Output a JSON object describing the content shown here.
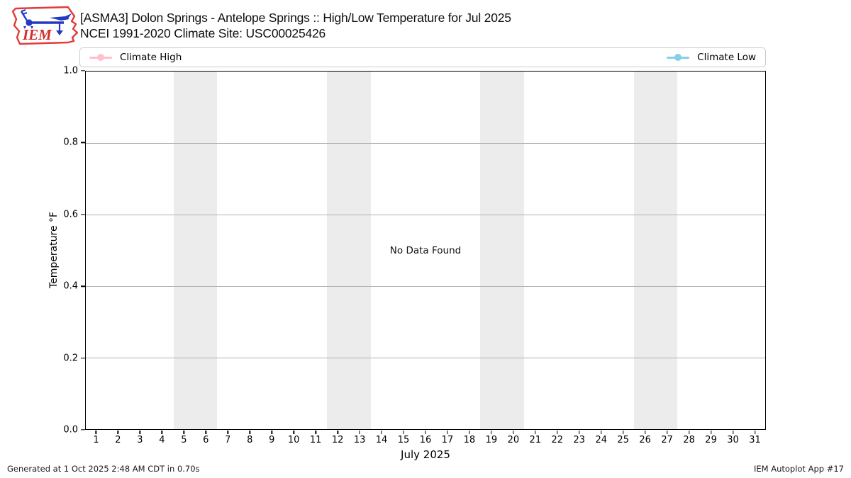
{
  "header": {
    "title_line1": "[ASMA3] Dolon Springs - Antelope Springs :: High/Low Temperature for Jul 2025",
    "title_line2": "NCEI 1991-2020 Climate Site: USC00025426",
    "logo_text": "IEM"
  },
  "legend": {
    "items": [
      {
        "label": "Climate High",
        "color": "#ffc0cb"
      },
      {
        "label": "Climate Low",
        "color": "#87ceeb"
      }
    ]
  },
  "chart_data": {
    "type": "line",
    "title": "[ASMA3] Dolon Springs - Antelope Springs :: High/Low Temperature for Jul 2025",
    "subtitle": "NCEI 1991-2020 Climate Site: USC00025426",
    "xlabel": "July 2025",
    "ylabel": "Temperature °F",
    "xlim": [
      0.5,
      31.5
    ],
    "ylim": [
      0.0,
      1.0
    ],
    "x_ticks": [
      1,
      2,
      3,
      4,
      5,
      6,
      7,
      8,
      9,
      10,
      11,
      12,
      13,
      14,
      15,
      16,
      17,
      18,
      19,
      20,
      21,
      22,
      23,
      24,
      25,
      26,
      27,
      28,
      29,
      30,
      31
    ],
    "y_ticks": [
      0.0,
      0.2,
      0.4,
      0.6,
      0.8,
      1.0
    ],
    "grid": "horizontal",
    "legend_position": "top",
    "series": [
      {
        "name": "Climate High",
        "color": "#ffc0cb",
        "x": [],
        "y": []
      },
      {
        "name": "Climate Low",
        "color": "#87ceeb",
        "x": [],
        "y": []
      }
    ],
    "annotations": [
      {
        "text": "No Data Found",
        "x": 0.5,
        "y": 0.5,
        "coords": "axes-fraction"
      }
    ],
    "shaded_bands": {
      "color": "#ececec",
      "x_ranges": [
        [
          4.5,
          6.5
        ],
        [
          11.5,
          13.5
        ],
        [
          18.5,
          20.5
        ],
        [
          25.5,
          27.5
        ]
      ]
    }
  },
  "footer": {
    "generated": "Generated at 1 Oct 2025 2:48 AM CDT in 0.70s",
    "app": "IEM Autoplot App #17"
  }
}
